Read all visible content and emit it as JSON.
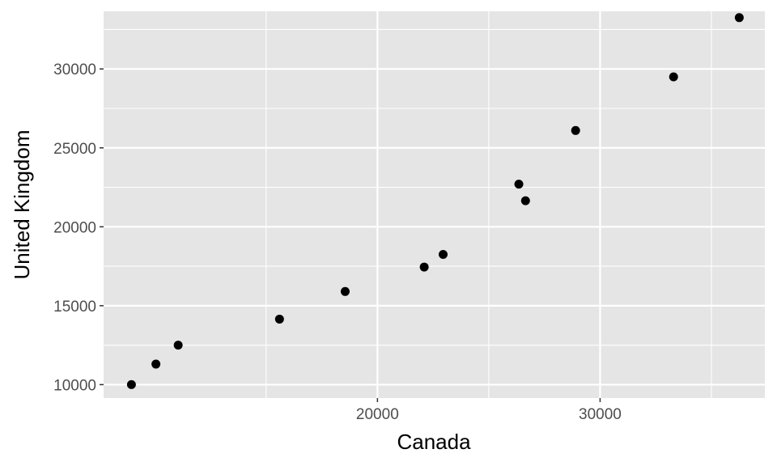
{
  "chart_data": {
    "type": "scatter",
    "title": "",
    "xlabel": "Canada",
    "ylabel": "United Kingdom",
    "xlim": [
      7700,
      37400
    ],
    "ylim": [
      9150,
      33650
    ],
    "x_ticks": [
      20000,
      30000
    ],
    "x_minor_ticks": [
      15000,
      25000,
      35000
    ],
    "y_ticks": [
      10000,
      15000,
      20000,
      25000,
      30000
    ],
    "y_minor_ticks": [
      12500,
      17500,
      22500,
      27500,
      32500
    ],
    "grid": true,
    "background_color": "#e5e5e5",
    "grid_color": "#ffffff",
    "point_color": "#000000",
    "points": [
      {
        "x": 8950,
        "y": 10000
      },
      {
        "x": 10050,
        "y": 11300
      },
      {
        "x": 11050,
        "y": 12500
      },
      {
        "x": 15600,
        "y": 14150
      },
      {
        "x": 18550,
        "y": 15900
      },
      {
        "x": 22100,
        "y": 17450
      },
      {
        "x": 22950,
        "y": 18250
      },
      {
        "x": 26350,
        "y": 22700
      },
      {
        "x": 26650,
        "y": 21650
      },
      {
        "x": 28900,
        "y": 26100
      },
      {
        "x": 33300,
        "y": 29500
      },
      {
        "x": 36250,
        "y": 33250
      }
    ]
  }
}
